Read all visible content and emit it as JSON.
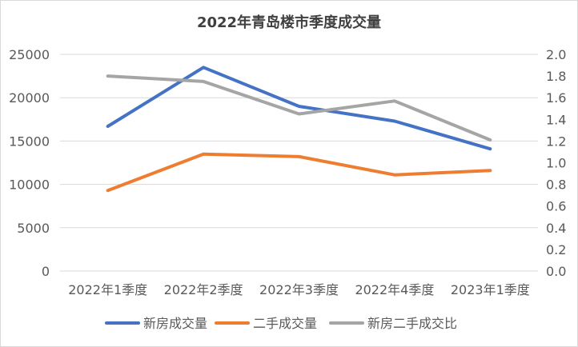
{
  "chart_data": {
    "type": "line",
    "title": "2022年青岛楼市季度成交量",
    "categories": [
      "2022年1季度",
      "2022年2季度",
      "2022年3季度",
      "2022年4季度",
      "2023年1季度"
    ],
    "y_left": {
      "min": 0,
      "max": 25000,
      "step": 5000,
      "ticks": [
        "0",
        "5000",
        "10000",
        "15000",
        "20000",
        "25000"
      ]
    },
    "y_right": {
      "min": 0,
      "max": 2.0,
      "step": 0.2,
      "ticks": [
        "0.0",
        "0.2",
        "0.4",
        "0.6",
        "0.8",
        "1.0",
        "1.2",
        "1.4",
        "1.6",
        "1.8",
        "2.0"
      ]
    },
    "grid": true,
    "legend_position": "bottom",
    "series": [
      {
        "name": "新房成交量",
        "axis": "left",
        "color": "#4472C4",
        "values": [
          16700,
          23500,
          19000,
          17300,
          14100
        ]
      },
      {
        "name": "二手成交量",
        "axis": "left",
        "color": "#ED7D31",
        "values": [
          9300,
          13500,
          13200,
          11100,
          11600
        ]
      },
      {
        "name": "新房二手成交比",
        "axis": "right",
        "color": "#A5A5A5",
        "values": [
          1.8,
          1.75,
          1.45,
          1.57,
          1.21
        ]
      }
    ]
  }
}
